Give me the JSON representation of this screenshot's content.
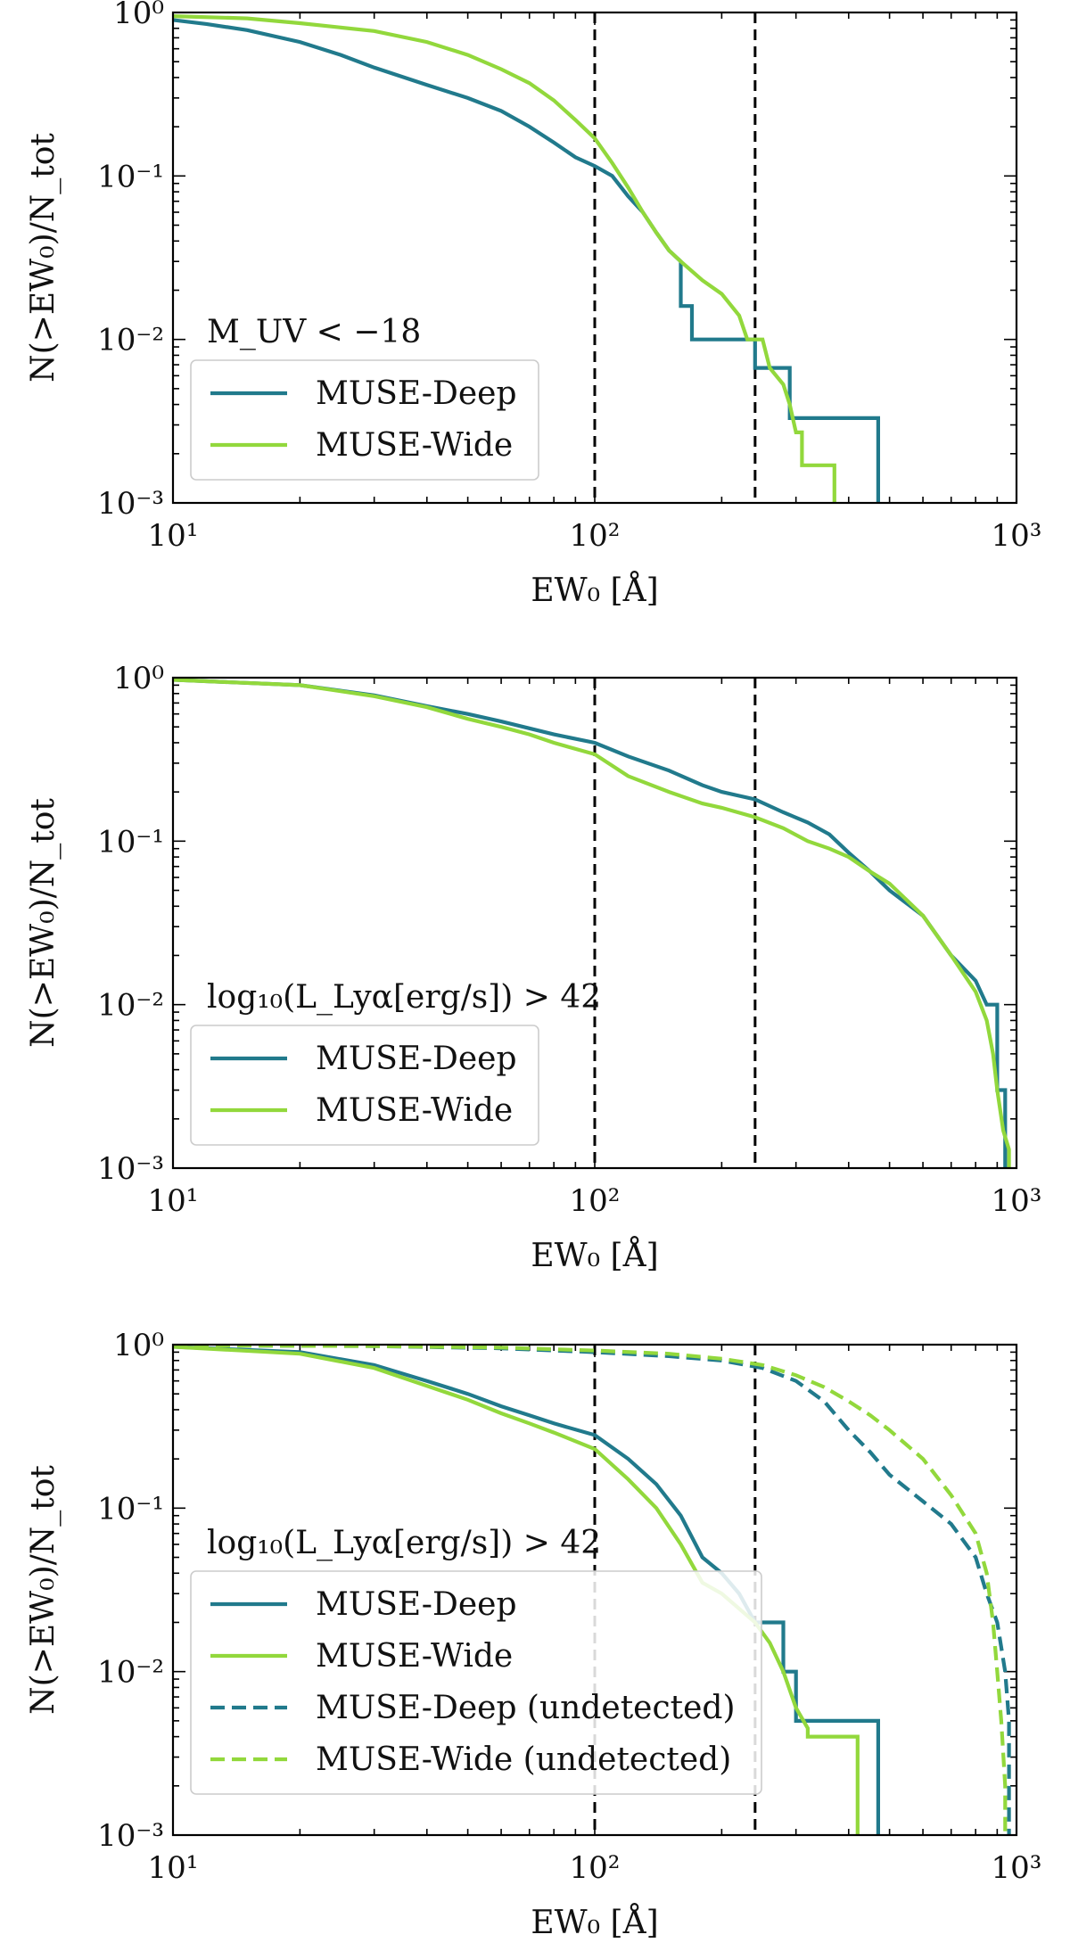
{
  "colors": {
    "deep": "#217a8c",
    "wide": "#92d83c",
    "ref_line": "#000000",
    "axis": "#000000"
  },
  "chart_data": [
    {
      "type": "line",
      "x_scale": "log",
      "y_scale": "log",
      "xlim": [
        10,
        1000
      ],
      "ylim": [
        0.001,
        1
      ],
      "xlabel": "EW₀ [Å]",
      "ylabel": "N(>EW₀)/N_tot",
      "xtick_labels": [
        "10¹",
        "10²",
        "10³"
      ],
      "ytick_labels": [
        "10⁰",
        "10⁻¹",
        "10⁻²",
        "10⁻³"
      ],
      "annotation": "M_UV < −18",
      "vlines": [
        100,
        240
      ],
      "legend_position": "lower-left",
      "series": [
        {
          "name": "MUSE-Deep",
          "color_key": "deep",
          "dash": "solid",
          "points": [
            [
              10,
              0.9
            ],
            [
              12,
              0.85
            ],
            [
              15,
              0.78
            ],
            [
              20,
              0.66
            ],
            [
              25,
              0.55
            ],
            [
              30,
              0.46
            ],
            [
              40,
              0.36
            ],
            [
              50,
              0.3
            ],
            [
              60,
              0.25
            ],
            [
              70,
              0.2
            ],
            [
              80,
              0.16
            ],
            [
              90,
              0.13
            ],
            [
              100,
              0.115
            ],
            [
              110,
              0.1
            ],
            [
              120,
              0.075
            ],
            [
              130,
              0.06
            ],
            [
              140,
              0.045
            ],
            [
              150,
              0.035
            ],
            [
              160,
              0.03
            ],
            [
              160,
              0.016
            ],
            [
              170,
              0.016
            ],
            [
              170,
              0.01
            ],
            [
              240,
              0.01
            ],
            [
              240,
              0.0067
            ],
            [
              290,
              0.0067
            ],
            [
              290,
              0.0033
            ],
            [
              470,
              0.0033
            ],
            [
              470,
              0.001
            ]
          ]
        },
        {
          "name": "MUSE-Wide",
          "color_key": "wide",
          "dash": "solid",
          "points": [
            [
              10,
              0.95
            ],
            [
              15,
              0.92
            ],
            [
              20,
              0.86
            ],
            [
              30,
              0.77
            ],
            [
              40,
              0.66
            ],
            [
              50,
              0.55
            ],
            [
              60,
              0.45
            ],
            [
              70,
              0.37
            ],
            [
              80,
              0.29
            ],
            [
              90,
              0.22
            ],
            [
              100,
              0.17
            ],
            [
              110,
              0.12
            ],
            [
              120,
              0.085
            ],
            [
              130,
              0.06
            ],
            [
              140,
              0.045
            ],
            [
              150,
              0.035
            ],
            [
              160,
              0.03
            ],
            [
              180,
              0.023
            ],
            [
              200,
              0.019
            ],
            [
              220,
              0.014
            ],
            [
              230,
              0.01
            ],
            [
              250,
              0.01
            ],
            [
              260,
              0.0067
            ],
            [
              280,
              0.0053
            ],
            [
              290,
              0.004
            ],
            [
              300,
              0.0027
            ],
            [
              310,
              0.0027
            ],
            [
              310,
              0.0017
            ],
            [
              370,
              0.0017
            ],
            [
              370,
              0.001
            ]
          ]
        }
      ]
    },
    {
      "type": "line",
      "x_scale": "log",
      "y_scale": "log",
      "xlim": [
        10,
        1000
      ],
      "ylim": [
        0.001,
        1
      ],
      "xlabel": "EW₀ [Å]",
      "ylabel": "N(>EW₀)/N_tot",
      "xtick_labels": [
        "10¹",
        "10²",
        "10³"
      ],
      "ytick_labels": [
        "10⁰",
        "10⁻¹",
        "10⁻²",
        "10⁻³"
      ],
      "annotation": "log₁₀(L_Lyα[erg/s]) > 42",
      "vlines": [
        100,
        240
      ],
      "legend_position": "lower-left",
      "series": [
        {
          "name": "MUSE-Deep",
          "color_key": "deep",
          "dash": "solid",
          "points": [
            [
              10,
              0.97
            ],
            [
              20,
              0.9
            ],
            [
              30,
              0.78
            ],
            [
              40,
              0.67
            ],
            [
              50,
              0.6
            ],
            [
              60,
              0.54
            ],
            [
              70,
              0.49
            ],
            [
              80,
              0.45
            ],
            [
              100,
              0.4
            ],
            [
              120,
              0.33
            ],
            [
              150,
              0.27
            ],
            [
              180,
              0.22
            ],
            [
              200,
              0.2
            ],
            [
              240,
              0.18
            ],
            [
              280,
              0.15
            ],
            [
              320,
              0.13
            ],
            [
              360,
              0.11
            ],
            [
              400,
              0.085
            ],
            [
              450,
              0.065
            ],
            [
              500,
              0.05
            ],
            [
              600,
              0.035
            ],
            [
              700,
              0.02
            ],
            [
              800,
              0.014
            ],
            [
              850,
              0.01
            ],
            [
              900,
              0.01
            ],
            [
              900,
              0.003
            ],
            [
              940,
              0.003
            ],
            [
              940,
              0.001
            ]
          ]
        },
        {
          "name": "MUSE-Wide",
          "color_key": "wide",
          "dash": "solid",
          "points": [
            [
              10,
              0.97
            ],
            [
              20,
              0.9
            ],
            [
              30,
              0.77
            ],
            [
              40,
              0.66
            ],
            [
              50,
              0.56
            ],
            [
              60,
              0.5
            ],
            [
              70,
              0.45
            ],
            [
              80,
              0.4
            ],
            [
              100,
              0.34
            ],
            [
              120,
              0.25
            ],
            [
              150,
              0.2
            ],
            [
              180,
              0.17
            ],
            [
              200,
              0.16
            ],
            [
              240,
              0.14
            ],
            [
              280,
              0.12
            ],
            [
              320,
              0.1
            ],
            [
              360,
              0.09
            ],
            [
              400,
              0.08
            ],
            [
              450,
              0.065
            ],
            [
              500,
              0.055
            ],
            [
              600,
              0.035
            ],
            [
              700,
              0.02
            ],
            [
              800,
              0.012
            ],
            [
              850,
              0.008
            ],
            [
              880,
              0.005
            ],
            [
              900,
              0.003
            ],
            [
              930,
              0.0017
            ],
            [
              960,
              0.0013
            ],
            [
              960,
              0.001
            ]
          ]
        }
      ]
    },
    {
      "type": "line",
      "x_scale": "log",
      "y_scale": "log",
      "xlim": [
        10,
        1000
      ],
      "ylim": [
        0.001,
        1
      ],
      "xlabel": "EW₀ [Å]",
      "ylabel": "N(>EW₀)/N_tot",
      "xtick_labels": [
        "10¹",
        "10²",
        "10³"
      ],
      "ytick_labels": [
        "10⁰",
        "10⁻¹",
        "10⁻²",
        "10⁻³"
      ],
      "annotation": "log₁₀(L_Lyα[erg/s]) > 42",
      "vlines": [
        100,
        240
      ],
      "legend_position": "lower-left",
      "series": [
        {
          "name": "MUSE-Deep",
          "color_key": "deep",
          "dash": "solid",
          "points": [
            [
              10,
              0.97
            ],
            [
              20,
              0.9
            ],
            [
              30,
              0.75
            ],
            [
              40,
              0.6
            ],
            [
              50,
              0.5
            ],
            [
              60,
              0.42
            ],
            [
              70,
              0.37
            ],
            [
              80,
              0.33
            ],
            [
              100,
              0.28
            ],
            [
              120,
              0.2
            ],
            [
              140,
              0.14
            ],
            [
              160,
              0.09
            ],
            [
              180,
              0.05
            ],
            [
              200,
              0.04
            ],
            [
              220,
              0.03
            ],
            [
              240,
              0.02
            ],
            [
              280,
              0.02
            ],
            [
              280,
              0.01
            ],
            [
              300,
              0.01
            ],
            [
              300,
              0.005
            ],
            [
              470,
              0.005
            ],
            [
              470,
              0.001
            ]
          ]
        },
        {
          "name": "MUSE-Wide",
          "color_key": "wide",
          "dash": "solid",
          "points": [
            [
              10,
              0.97
            ],
            [
              20,
              0.88
            ],
            [
              30,
              0.72
            ],
            [
              40,
              0.56
            ],
            [
              50,
              0.46
            ],
            [
              60,
              0.38
            ],
            [
              70,
              0.33
            ],
            [
              80,
              0.29
            ],
            [
              100,
              0.23
            ],
            [
              120,
              0.15
            ],
            [
              140,
              0.1
            ],
            [
              160,
              0.06
            ],
            [
              180,
              0.035
            ],
            [
              200,
              0.03
            ],
            [
              240,
              0.02
            ],
            [
              260,
              0.015
            ],
            [
              280,
              0.01
            ],
            [
              300,
              0.006
            ],
            [
              320,
              0.0045
            ],
            [
              320,
              0.004
            ],
            [
              420,
              0.004
            ],
            [
              420,
              0.001
            ]
          ]
        },
        {
          "name": "MUSE-Deep (undetected)",
          "color_key": "deep",
          "dash": "dashed",
          "points": [
            [
              10,
              0.99
            ],
            [
              30,
              0.98
            ],
            [
              60,
              0.95
            ],
            [
              100,
              0.9
            ],
            [
              150,
              0.85
            ],
            [
              200,
              0.8
            ],
            [
              250,
              0.72
            ],
            [
              300,
              0.6
            ],
            [
              350,
              0.45
            ],
            [
              400,
              0.3
            ],
            [
              450,
              0.22
            ],
            [
              500,
              0.16
            ],
            [
              600,
              0.11
            ],
            [
              700,
              0.08
            ],
            [
              800,
              0.05
            ],
            [
              850,
              0.03
            ],
            [
              900,
              0.02
            ],
            [
              940,
              0.01
            ],
            [
              960,
              0.005
            ],
            [
              960,
              0.001
            ]
          ]
        },
        {
          "name": "MUSE-Wide (undetected)",
          "color_key": "wide",
          "dash": "dashed",
          "points": [
            [
              10,
              0.99
            ],
            [
              30,
              0.98
            ],
            [
              60,
              0.96
            ],
            [
              100,
              0.92
            ],
            [
              150,
              0.88
            ],
            [
              200,
              0.82
            ],
            [
              250,
              0.75
            ],
            [
              300,
              0.65
            ],
            [
              350,
              0.55
            ],
            [
              400,
              0.45
            ],
            [
              450,
              0.37
            ],
            [
              500,
              0.3
            ],
            [
              600,
              0.2
            ],
            [
              700,
              0.12
            ],
            [
              800,
              0.07
            ],
            [
              850,
              0.04
            ],
            [
              880,
              0.02
            ],
            [
              900,
              0.01
            ],
            [
              920,
              0.005
            ],
            [
              940,
              0.002
            ],
            [
              940,
              0.001
            ]
          ]
        }
      ]
    }
  ]
}
